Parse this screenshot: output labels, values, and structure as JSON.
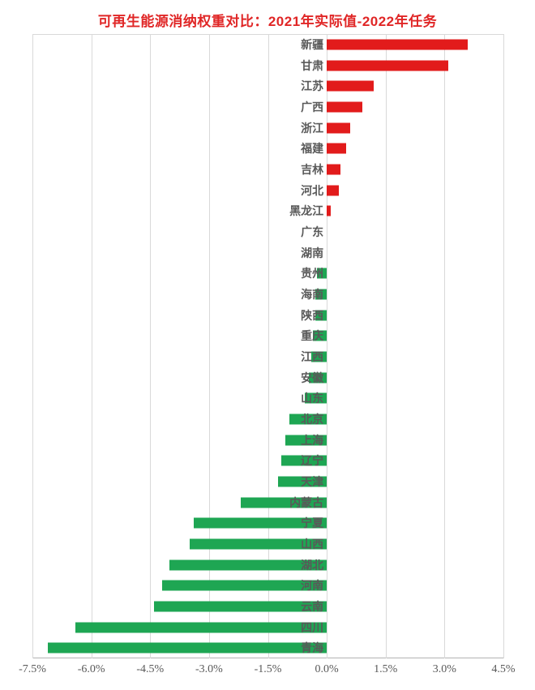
{
  "title": {
    "text": "可再生能源消纳权重对比：2021年实际值-2022年任务",
    "color": "#e02626"
  },
  "colors": {
    "positive_bar": "#e21b1b",
    "negative_bar": "#1ea653",
    "category_label": "#595959",
    "tick_label": "#595959",
    "gridline": "#d9d9d9",
    "background": "#ffffff"
  },
  "chart_data": {
    "type": "bar",
    "orientation": "horizontal",
    "title": "可再生能源消纳权重对比：2021年实际值-2022年任务",
    "categories": [
      "新疆",
      "甘肃",
      "江苏",
      "广西",
      "浙江",
      "福建",
      "吉林",
      "河北",
      "黑龙江",
      "广东",
      "湖南",
      "贵州",
      "海南",
      "陕西",
      "重庆",
      "江西",
      "安徽",
      "山东",
      "北京",
      "上海",
      "辽宁",
      "天津",
      "内蒙古",
      "宁夏",
      "山西",
      "湖北",
      "河南",
      "云南",
      "四川",
      "青海"
    ],
    "values": [
      3.6,
      3.1,
      1.2,
      0.9,
      0.6,
      0.5,
      0.35,
      0.3,
      0.1,
      0.0,
      0.0,
      -0.25,
      -0.3,
      -0.3,
      -0.35,
      -0.4,
      -0.45,
      -0.55,
      -0.95,
      -1.05,
      -1.15,
      -1.25,
      -2.2,
      -3.4,
      -3.5,
      -4.0,
      -4.2,
      -4.4,
      -6.4,
      -7.1
    ],
    "unit": "%",
    "xlabel": "",
    "ylabel": "",
    "xlim": [
      -7.5,
      4.5
    ],
    "x_tick_values": [
      -7.5,
      -6.0,
      -4.5,
      -3.0,
      -1.5,
      0.0,
      1.5,
      3.0,
      4.5
    ],
    "x_tick_labels": [
      "-7.5%",
      "-6.0%",
      "-4.5%",
      "-3.0%",
      "-1.5%",
      "0.0%",
      "1.5%",
      "3.0%",
      "4.5%"
    ],
    "grid": true,
    "legend": false,
    "value_color_rule": "positive red, negative green"
  }
}
